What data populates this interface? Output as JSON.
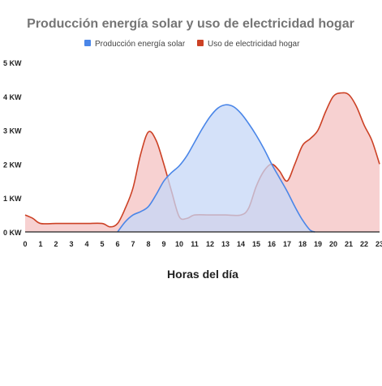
{
  "chart_data": {
    "type": "area",
    "title": "Producción energía solar y uso de electricidad hogar",
    "xlabel": "Horas del día",
    "ylabel": "",
    "x": [
      0,
      1,
      2,
      3,
      4,
      5,
      6,
      7,
      8,
      9,
      10,
      11,
      12,
      13,
      14,
      15,
      16,
      17,
      18,
      19,
      20,
      21,
      22,
      23
    ],
    "xlim": [
      0,
      23
    ],
    "ylim": [
      0,
      5
    ],
    "y_ticks": [
      0,
      1,
      2,
      3,
      4,
      5
    ],
    "y_tick_labels": [
      "0 KW",
      "1 KW",
      "2 KW",
      "3 KW",
      "4 KW",
      "5 KW"
    ],
    "legend_position": "top-center",
    "grid": false,
    "series": [
      {
        "name": "Producción energía solar",
        "color": "#4a86e8",
        "fill": "#c5d7f7",
        "points": [
          [
            6.0,
            0.0
          ],
          [
            6.5,
            0.3
          ],
          [
            7.0,
            0.5
          ],
          [
            7.5,
            0.6
          ],
          [
            8.0,
            0.75
          ],
          [
            8.5,
            1.1
          ],
          [
            9.0,
            1.5
          ],
          [
            9.5,
            1.75
          ],
          [
            10.0,
            1.95
          ],
          [
            10.5,
            2.25
          ],
          [
            11.0,
            2.65
          ],
          [
            11.5,
            3.05
          ],
          [
            12.0,
            3.4
          ],
          [
            12.5,
            3.65
          ],
          [
            13.0,
            3.75
          ],
          [
            13.5,
            3.7
          ],
          [
            14.0,
            3.5
          ],
          [
            14.5,
            3.2
          ],
          [
            15.0,
            2.85
          ],
          [
            15.5,
            2.45
          ],
          [
            16.0,
            2.0
          ],
          [
            16.5,
            1.6
          ],
          [
            17.0,
            1.2
          ],
          [
            17.5,
            0.75
          ],
          [
            18.0,
            0.35
          ],
          [
            18.5,
            0.05
          ],
          [
            18.8,
            0.0
          ]
        ]
      },
      {
        "name": "Uso de electricidad hogar",
        "color": "#cc4125",
        "fill": "#f4c2c2",
        "points": [
          [
            0.0,
            0.5
          ],
          [
            0.5,
            0.4
          ],
          [
            1.0,
            0.25
          ],
          [
            2.0,
            0.25
          ],
          [
            3.0,
            0.25
          ],
          [
            4.0,
            0.25
          ],
          [
            5.0,
            0.25
          ],
          [
            5.5,
            0.15
          ],
          [
            6.0,
            0.25
          ],
          [
            6.5,
            0.7
          ],
          [
            7.0,
            1.3
          ],
          [
            7.5,
            2.3
          ],
          [
            8.0,
            2.95
          ],
          [
            8.5,
            2.7
          ],
          [
            9.0,
            2.0
          ],
          [
            9.5,
            1.2
          ],
          [
            10.0,
            0.45
          ],
          [
            10.5,
            0.4
          ],
          [
            11.0,
            0.5
          ],
          [
            12.0,
            0.5
          ],
          [
            13.0,
            0.5
          ],
          [
            14.0,
            0.5
          ],
          [
            14.5,
            0.7
          ],
          [
            15.0,
            1.35
          ],
          [
            15.5,
            1.8
          ],
          [
            16.0,
            2.0
          ],
          [
            16.5,
            1.8
          ],
          [
            17.0,
            1.5
          ],
          [
            17.5,
            2.0
          ],
          [
            18.0,
            2.55
          ],
          [
            18.5,
            2.75
          ],
          [
            19.0,
            3.0
          ],
          [
            19.5,
            3.55
          ],
          [
            20.0,
            4.0
          ],
          [
            20.5,
            4.1
          ],
          [
            21.0,
            4.05
          ],
          [
            21.5,
            3.7
          ],
          [
            22.0,
            3.15
          ],
          [
            22.5,
            2.7
          ],
          [
            23.0,
            2.0
          ]
        ]
      }
    ]
  }
}
